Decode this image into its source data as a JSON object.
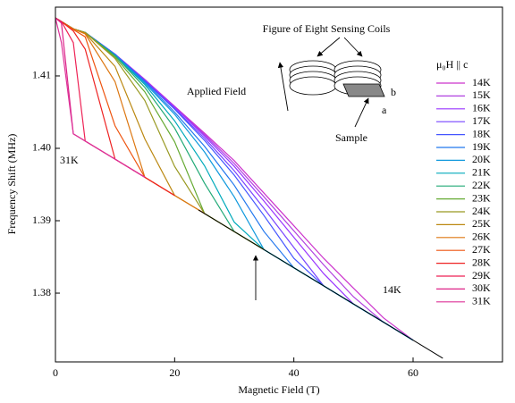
{
  "chart_data": {
    "type": "line",
    "x_label": "Magnetic Field (T)",
    "y_label": "Frequency Shift (MHz)",
    "xlim": [
      0,
      75
    ],
    "xticks": [
      0,
      20,
      40,
      60
    ],
    "ylim": [
      1.3705,
      1.4195
    ],
    "yticks": [
      1.38,
      1.39,
      {
        "value": 1.4,
        "label": "1.40"
      },
      1.41
    ],
    "legend_title": "μ₀H || c",
    "legend_position": "right",
    "x": [
      0,
      1,
      3,
      5,
      10,
      15,
      20,
      25,
      30,
      35,
      40,
      45,
      50,
      55,
      60
    ],
    "series": [
      {
        "name": "14K",
        "color": "#cc33cc",
        "values": [
          1.418,
          1.4175,
          1.4165,
          1.416,
          1.413,
          1.4095,
          1.4058,
          1.4021,
          1.3983,
          1.3938,
          1.3893,
          1.3848,
          1.3807,
          1.3766,
          1.3735
        ]
      },
      {
        "name": "15K",
        "color": "#b040e0",
        "values": [
          1.418,
          1.4175,
          1.4165,
          1.416,
          1.413,
          1.4095,
          1.4057,
          1.4019,
          1.3979,
          1.3933,
          1.3886,
          1.3839,
          1.3795,
          1.376,
          1.3735
        ]
      },
      {
        "name": "16K",
        "color": "#9933ff",
        "values": [
          1.418,
          1.4175,
          1.4165,
          1.416,
          1.413,
          1.4094,
          1.4057,
          1.4017,
          1.3975,
          1.3927,
          1.3877,
          1.3827,
          1.3785,
          1.376,
          1.3735
        ]
      },
      {
        "name": "17K",
        "color": "#7744ff",
        "values": [
          1.418,
          1.4175,
          1.4165,
          1.416,
          1.413,
          1.4093,
          1.4055,
          1.4014,
          1.3969,
          1.3917,
          1.3863,
          1.381,
          1.3785,
          1.376,
          1.3735
        ]
      },
      {
        "name": "18K",
        "color": "#4455ff",
        "values": [
          1.418,
          1.4175,
          1.4165,
          1.416,
          1.413,
          1.4093,
          1.4054,
          1.4011,
          1.3963,
          1.3907,
          1.3848,
          1.381,
          1.3785,
          1.376,
          1.3735
        ]
      },
      {
        "name": "19K",
        "color": "#2277ee",
        "values": [
          1.418,
          1.4175,
          1.4165,
          1.416,
          1.4129,
          1.4092,
          1.405,
          1.4003,
          1.3949,
          1.3885,
          1.3835,
          1.381,
          1.3785,
          1.376,
          1.3735
        ]
      },
      {
        "name": "20K",
        "color": "#1199dd",
        "values": [
          1.418,
          1.4175,
          1.4165,
          1.416,
          1.4129,
          1.409,
          1.4047,
          1.3995,
          1.3933,
          1.386,
          1.3835,
          1.381,
          1.3785,
          1.376,
          1.3735
        ]
      },
      {
        "name": "21K",
        "color": "#00aabb",
        "values": [
          1.418,
          1.4175,
          1.4165,
          1.416,
          1.4128,
          1.4088,
          1.4038,
          1.3976,
          1.3898,
          1.386,
          1.3835,
          1.381,
          1.3785,
          1.376,
          1.3735
        ]
      },
      {
        "name": "22K",
        "color": "#22aa77",
        "values": [
          1.418,
          1.4175,
          1.4165,
          1.416,
          1.4128,
          1.4084,
          1.4028,
          1.3952,
          1.3885,
          1.386,
          null,
          null,
          null,
          null,
          null
        ]
      },
      {
        "name": "23K",
        "color": "#66aa33",
        "values": [
          1.418,
          1.4175,
          1.4165,
          1.416,
          1.4126,
          1.4078,
          1.4009,
          1.391,
          1.3885,
          1.386,
          null,
          null,
          null,
          null,
          null
        ]
      },
      {
        "name": "24K",
        "color": "#999922",
        "values": [
          1.418,
          1.4175,
          1.4165,
          1.416,
          1.4124,
          1.4066,
          1.3975,
          1.391,
          1.3885,
          1.386,
          null,
          null,
          null,
          null,
          null
        ]
      },
      {
        "name": "25K",
        "color": "#bb8811",
        "values": [
          1.418,
          1.4175,
          1.4165,
          1.4159,
          1.4113,
          1.4013,
          1.3935,
          1.391,
          null,
          null,
          null,
          null,
          null,
          null,
          null
        ]
      },
      {
        "name": "26K",
        "color": "#dd7711",
        "values": [
          1.418,
          1.4175,
          1.4165,
          1.4158,
          1.4092,
          1.396,
          1.3935,
          1.391,
          null,
          null,
          null,
          null,
          null,
          null,
          null
        ]
      },
      {
        "name": "27K",
        "color": "#ee5511",
        "values": [
          1.418,
          1.4175,
          1.4164,
          1.4154,
          1.4031,
          1.396,
          1.3935,
          null,
          null,
          null,
          null,
          null,
          null,
          null,
          null
        ]
      },
      {
        "name": "28K",
        "color": "#ee2222",
        "values": [
          1.418,
          1.4175,
          1.4162,
          1.4137,
          1.3985,
          1.396,
          1.3935,
          null,
          null,
          null,
          null,
          null,
          null,
          null,
          null
        ]
      },
      {
        "name": "29K",
        "color": "#ee2255",
        "values": [
          1.418,
          1.4175,
          1.4146,
          1.401,
          1.3985,
          1.396,
          null,
          null,
          null,
          null,
          null,
          null,
          null,
          null,
          null
        ]
      },
      {
        "name": "30K",
        "color": "#dd2288",
        "values": [
          1.418,
          1.4173,
          1.402,
          1.401,
          1.3985,
          1.396,
          null,
          null,
          null,
          null,
          null,
          null,
          null,
          null,
          null
        ]
      },
      {
        "name": "31K",
        "color": "#dd3399",
        "values": [
          1.418,
          1.4146,
          1.402,
          1.401,
          1.3985,
          1.396,
          null,
          null,
          null,
          null,
          null,
          null,
          null,
          null,
          null
        ]
      }
    ],
    "reference_line": {
      "color": "#000000",
      "x": [
        24,
        65
      ],
      "values": [
        1.3915,
        1.371
      ]
    },
    "annotations": {
      "coils": "Figure of Eight Sensing Coils",
      "field": "Applied Field",
      "sample": "Sample",
      "a": "a",
      "b": "b",
      "low_label": "31K",
      "high_label": "14K"
    }
  }
}
